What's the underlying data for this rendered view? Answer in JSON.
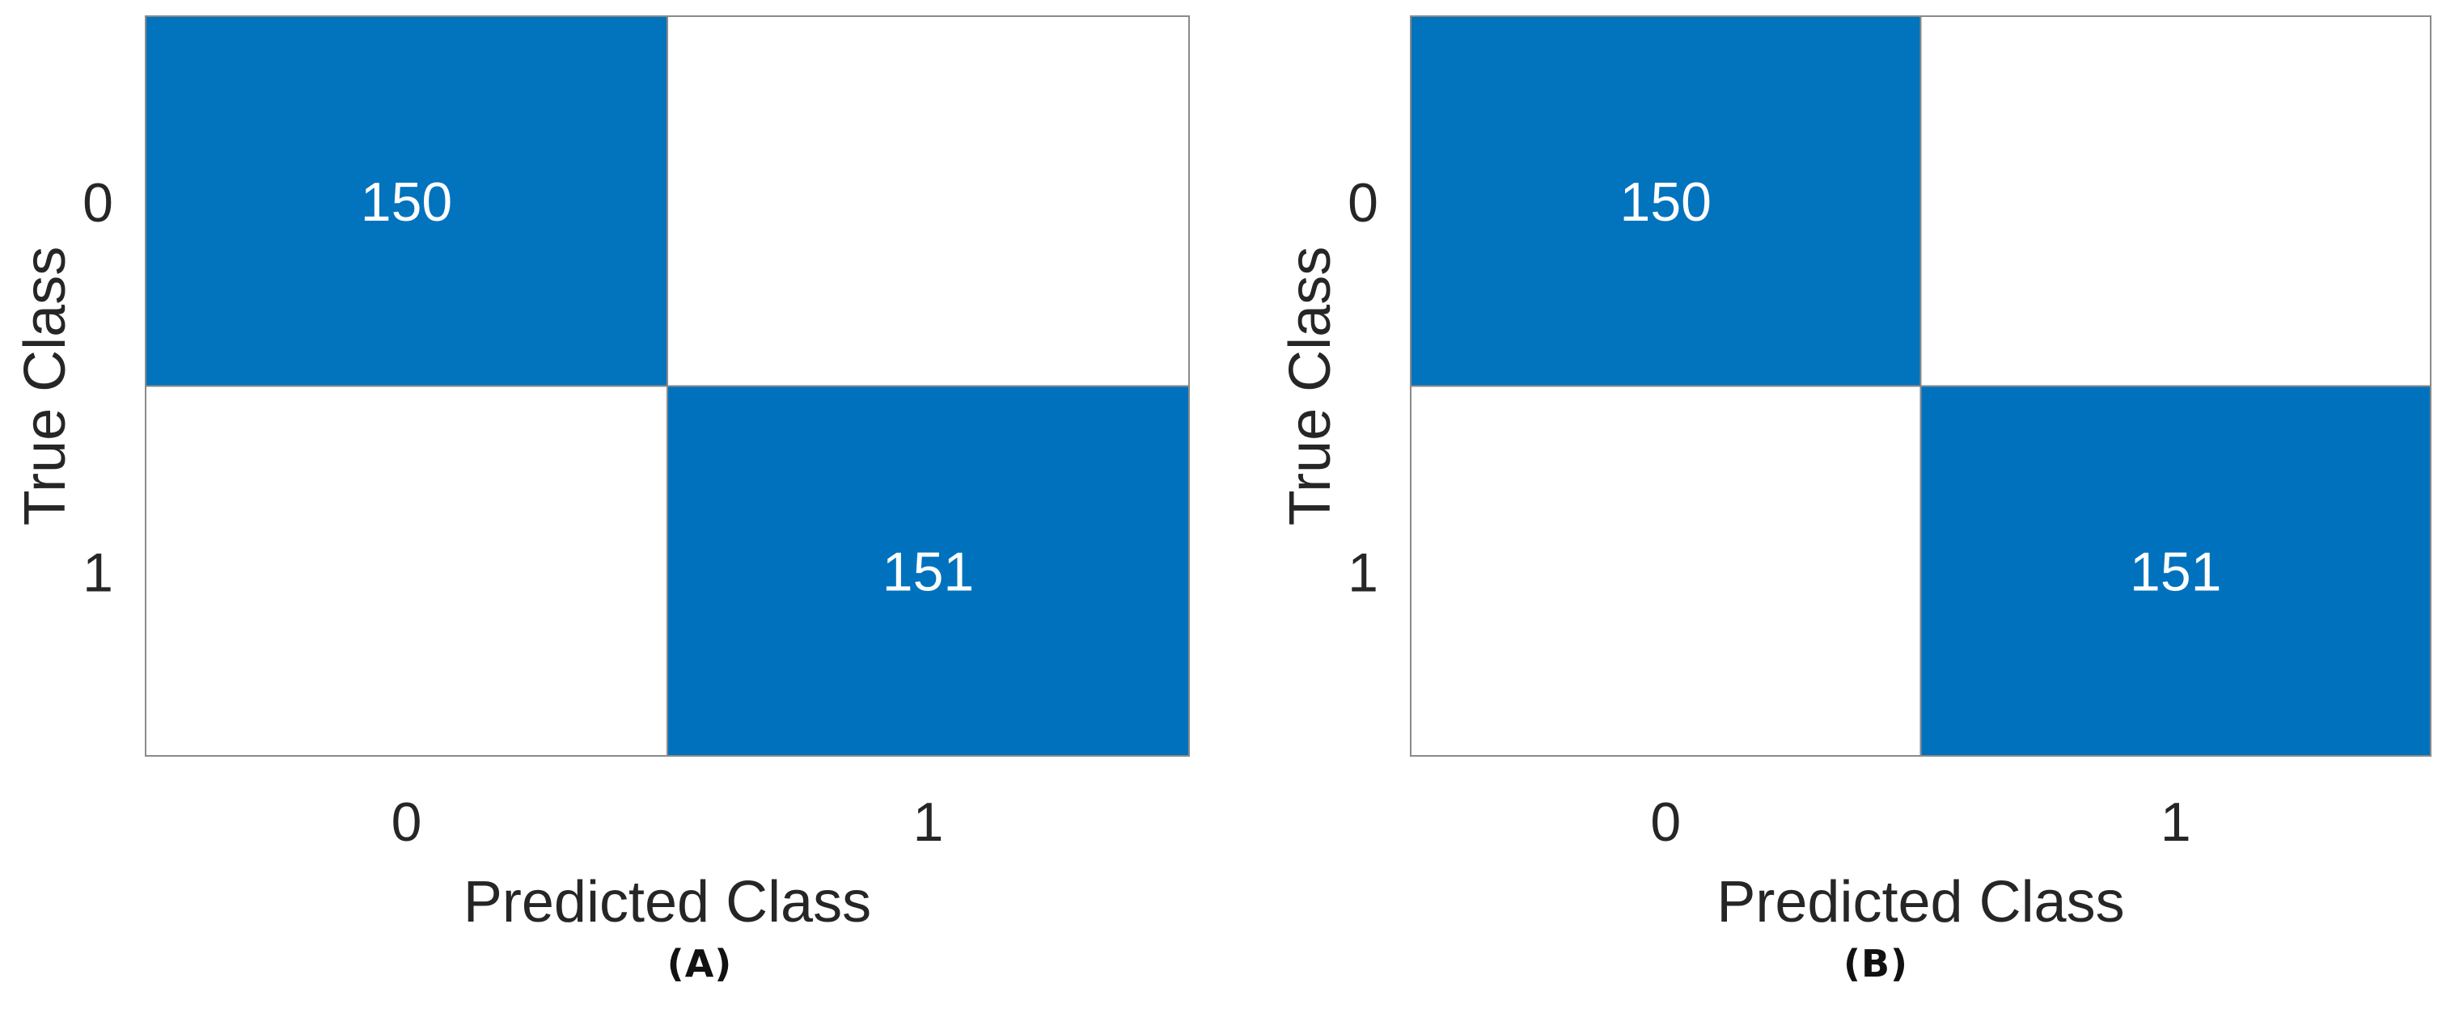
{
  "chart_data": [
    {
      "type": "heatmap",
      "panel_label": "(A)",
      "xlabel": "Predicted Class",
      "ylabel": "True Class",
      "x_categories": [
        "0",
        "1"
      ],
      "y_categories": [
        "0",
        "1"
      ],
      "cells": [
        {
          "true": "0",
          "predicted": "0",
          "value": 150
        },
        {
          "true": "0",
          "predicted": "1",
          "value": 0
        },
        {
          "true": "1",
          "predicted": "0",
          "value": 0
        },
        {
          "true": "1",
          "predicted": "1",
          "value": 151
        }
      ],
      "colors": {
        "high": "#0072BD",
        "low": "#FFFFFF",
        "high_text": "#FFFFFF"
      }
    },
    {
      "type": "heatmap",
      "panel_label": "(B)",
      "xlabel": "Predicted Class",
      "ylabel": "True Class",
      "x_categories": [
        "0",
        "1"
      ],
      "y_categories": [
        "0",
        "1"
      ],
      "cells": [
        {
          "true": "0",
          "predicted": "0",
          "value": 150
        },
        {
          "true": "0",
          "predicted": "1",
          "value": 0
        },
        {
          "true": "1",
          "predicted": "0",
          "value": 0
        },
        {
          "true": "1",
          "predicted": "1",
          "value": 151
        }
      ],
      "colors": {
        "high": "#0072BD",
        "low": "#FFFFFF",
        "high_text": "#FFFFFF"
      }
    }
  ]
}
